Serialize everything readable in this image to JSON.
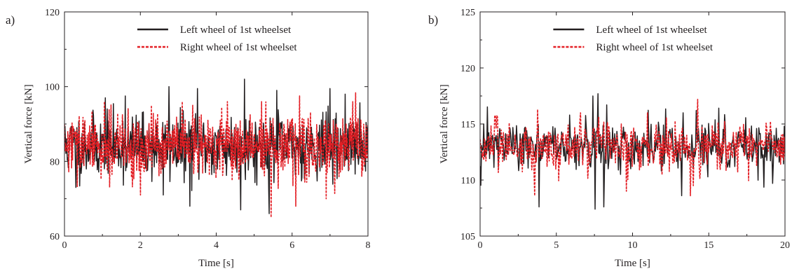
{
  "chart_data": [
    {
      "panel_label": "a)",
      "type": "line",
      "xlabel": "Time [s]",
      "ylabel": "Vertical force [kN]",
      "xlim": [
        0,
        8
      ],
      "ylim": [
        60,
        120
      ],
      "xticks": [
        0,
        2,
        4,
        6,
        8
      ],
      "yticks": [
        60,
        80,
        100,
        120
      ],
      "grid": false,
      "legend_position": "top-right",
      "series": [
        {
          "name": "Left wheel of 1st wheelset",
          "color": "#231f20",
          "style": "solid",
          "mean": 84,
          "spread": 4.2,
          "num_points": 640,
          "extremes": [
            [
              1.08,
              97
            ],
            [
              1.6,
              97.5
            ],
            [
              2.75,
              100
            ],
            [
              3.5,
              99.5
            ],
            [
              4.75,
              102
            ],
            [
              5.6,
              99
            ],
            [
              7.0,
              99.5
            ],
            [
              7.4,
              98
            ],
            [
              3.3,
              68
            ],
            [
              4.65,
              67
            ],
            [
              5.4,
              66
            ],
            [
              0.3,
              73
            ],
            [
              2.6,
              71
            ]
          ]
        },
        {
          "name": "Right wheel of 1st wheelset",
          "color": "#e31e24",
          "style": "dashed",
          "mean": 84,
          "spread": 4.2,
          "num_points": 640,
          "extremes": [
            [
              1.05,
              96
            ],
            [
              3.1,
              96
            ],
            [
              4.3,
              96
            ],
            [
              5.2,
              96
            ],
            [
              7.6,
              96
            ],
            [
              5.45,
              65
            ],
            [
              6.1,
              68
            ],
            [
              2.0,
              71
            ],
            [
              6.9,
              70
            ]
          ]
        }
      ]
    },
    {
      "panel_label": "b)",
      "type": "line",
      "xlabel": "Time [s]",
      "ylabel": "Vertical force [kN]",
      "xlim": [
        0,
        20
      ],
      "ylim": [
        105,
        125
      ],
      "xticks": [
        0,
        5,
        10,
        15,
        20
      ],
      "yticks": [
        105,
        110,
        115,
        120,
        125
      ],
      "grid": false,
      "legend_position": "top-right",
      "series": [
        {
          "name": "Left wheel of 1st wheelset",
          "color": "#231f20",
          "style": "solid",
          "mean": 113,
          "spread": 1.1,
          "num_points": 420,
          "extremes": [
            [
              7.4,
              117.5
            ],
            [
              7.75,
              117.7
            ],
            [
              8.3,
              116.7
            ],
            [
              13.3,
              116.0
            ],
            [
              14.2,
              116.2
            ],
            [
              3.85,
              107.6
            ],
            [
              7.55,
              107.4
            ],
            [
              8.1,
              107.6
            ],
            [
              13.2,
              108.6
            ],
            [
              19.2,
              109.7
            ]
          ]
        },
        {
          "name": "Right wheel of 1st wheelset",
          "color": "#e31e24",
          "style": "dashed",
          "mean": 113,
          "spread": 1.1,
          "num_points": 420,
          "extremes": [
            [
              3.75,
              116.3
            ],
            [
              6.6,
              116.0
            ],
            [
              14.25,
              117.2
            ],
            [
              11.0,
              116.0
            ],
            [
              3.6,
              108.6
            ],
            [
              13.8,
              108.6
            ],
            [
              9.6,
              109.0
            ],
            [
              14.0,
              109.5
            ]
          ]
        }
      ]
    }
  ]
}
